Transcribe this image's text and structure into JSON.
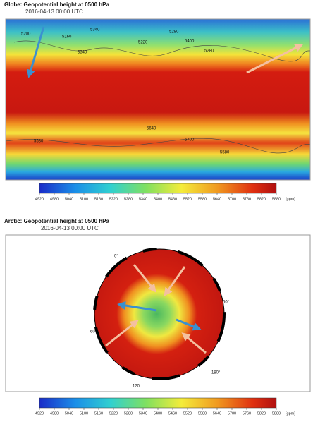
{
  "globe": {
    "title": "Globe: Geopotential height at 0500 hPa",
    "time": "2016-04-13 00:00 UTC",
    "contour_labels": [
      "5200",
      "5340",
      "5280",
      "5160",
      "5340",
      "5220",
      "5400",
      "5280",
      "5580",
      "5640",
      "5700",
      "5580"
    ],
    "colorbar": {
      "ticks": [
        4920,
        4980,
        5040,
        5100,
        5160,
        5220,
        5280,
        5340,
        5400,
        5460,
        5520,
        5580,
        5640,
        5700,
        5760,
        5820,
        5880
      ],
      "unit": "[gpm]"
    }
  },
  "arctic": {
    "title": "Arctic: Geopotential height at 0500 hPa",
    "time": "2016-04-13 00:00 UTC",
    "lon_labels": [
      "0°",
      "60",
      "120",
      "180°",
      "60°"
    ],
    "colorbar": {
      "ticks": [
        4920,
        4980,
        5040,
        5100,
        5160,
        5220,
        5280,
        5340,
        5400,
        5460,
        5520,
        5580,
        5640,
        5700,
        5760,
        5820,
        5880
      ],
      "unit": "[gpm]"
    }
  }
}
